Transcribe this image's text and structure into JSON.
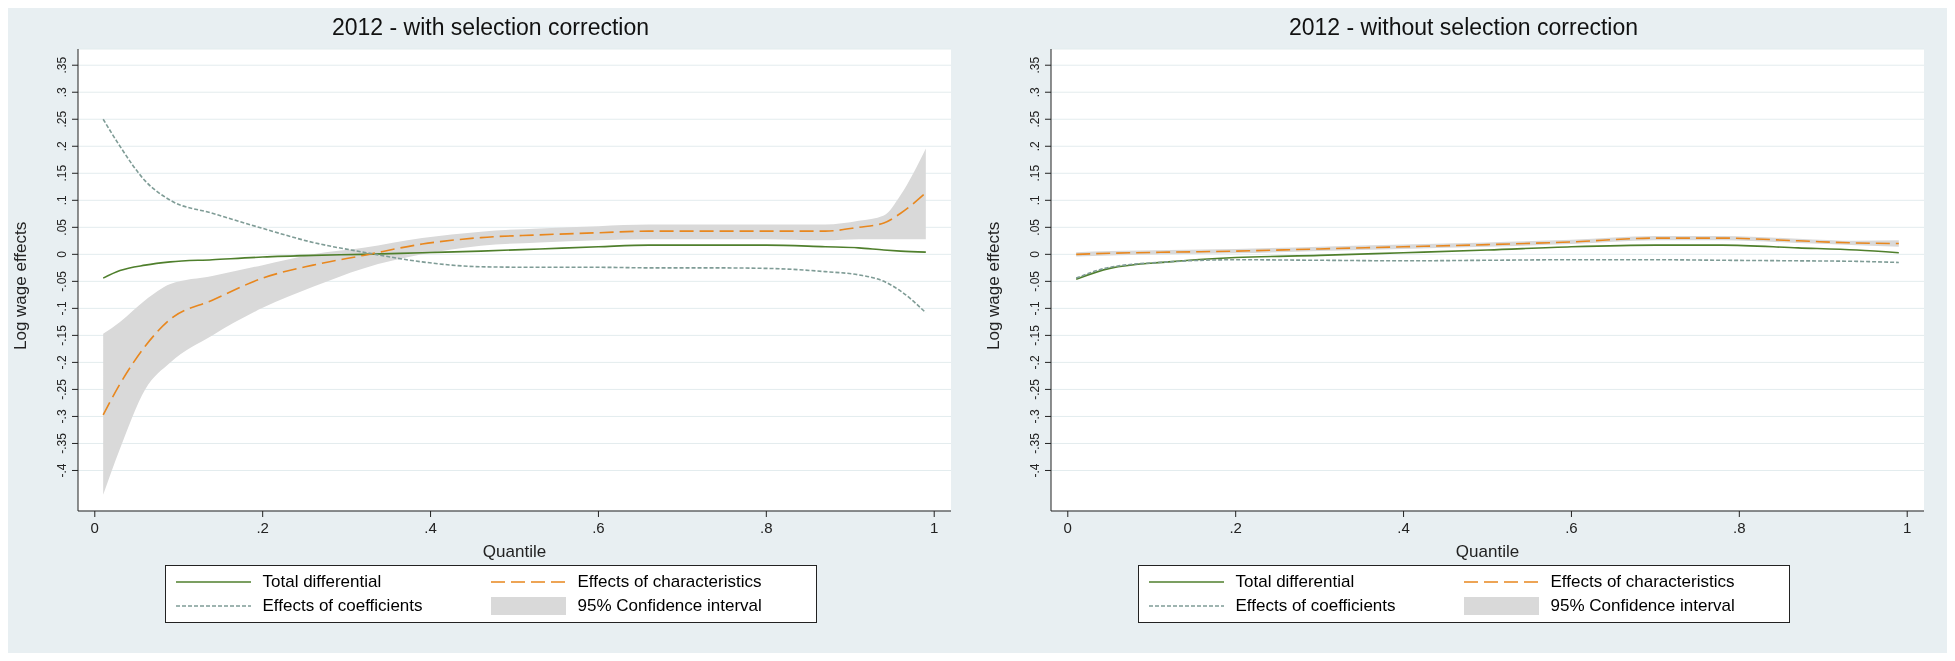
{
  "chart_data": [
    {
      "type": "line",
      "title": "2012 - with selection correction",
      "xlabel": "Quantile",
      "ylabel": "Log wage effects",
      "annotations": [
        "95% Confidence interval"
      ],
      "x": [
        0.01,
        0.03,
        0.06,
        0.09,
        0.14,
        0.2,
        0.26,
        0.32,
        0.39,
        0.46,
        0.53,
        0.6,
        0.66,
        0.73,
        0.8,
        0.87,
        0.91,
        0.94,
        0.96,
        0.99
      ],
      "xlim": [
        -0.02,
        1.02
      ],
      "xticks": [
        {
          "value": 0,
          "label": "0"
        },
        {
          "value": 0.2,
          "label": ".2"
        },
        {
          "value": 0.4,
          "label": ".4"
        },
        {
          "value": 0.6,
          "label": ".6"
        },
        {
          "value": 0.8,
          "label": ".8"
        },
        {
          "value": 1,
          "label": "1"
        }
      ],
      "ylim": [
        -0.475,
        0.38
      ],
      "yticks": [
        {
          "value": -0.4,
          "label": "-.4"
        },
        {
          "value": -0.35,
          "label": "-.35"
        },
        {
          "value": -0.3,
          "label": "-.3"
        },
        {
          "value": -0.25,
          "label": "-.25"
        },
        {
          "value": -0.2,
          "label": "-.2"
        },
        {
          "value": -0.15,
          "label": "-.15"
        },
        {
          "value": -0.1,
          "label": "-.1"
        },
        {
          "value": -0.05,
          "label": "-.05"
        },
        {
          "value": 0,
          "label": "0"
        },
        {
          "value": 0.05,
          "label": ".05"
        },
        {
          "value": 0.1,
          "label": ".1"
        },
        {
          "value": 0.15,
          "label": ".15"
        },
        {
          "value": 0.2,
          "label": ".2"
        },
        {
          "value": 0.25,
          "label": ".25"
        },
        {
          "value": 0.3,
          "label": ".3"
        },
        {
          "value": 0.35,
          "label": ".35"
        }
      ],
      "grid": "y",
      "legend": "bottom",
      "marker": "none",
      "series": [
        {
          "name": "Total differential",
          "color": "#4f7f2c",
          "line_style": "solid",
          "values": [
            -0.044,
            -0.03,
            -0.02,
            -0.014,
            -0.01,
            -0.005,
            -0.002,
            0,
            0.003,
            0.006,
            0.01,
            0.014,
            0.017,
            0.017,
            0.017,
            0.014,
            0.012,
            0.008,
            0.006,
            0.004
          ]
        },
        {
          "name": "Effects of characteristics",
          "color": "#e8871e",
          "line_style": "dashed",
          "values": [
            -0.297,
            -0.24,
            -0.17,
            -0.12,
            -0.085,
            -0.044,
            -0.02,
            -0.002,
            0.019,
            0.031,
            0.036,
            0.04,
            0.043,
            0.043,
            0.043,
            0.043,
            0.05,
            0.058,
            0.076,
            0.114
          ],
          "lower": [
            -0.445,
            -0.36,
            -0.25,
            -0.2,
            -0.15,
            -0.099,
            -0.06,
            -0.026,
            0,
            0.016,
            0.022,
            0.026,
            0.028,
            0.028,
            0.028,
            0.026,
            0.028,
            0.028,
            0.028,
            0.028
          ],
          "upper": [
            -0.147,
            -0.125,
            -0.085,
            -0.055,
            -0.04,
            -0.02,
            0,
            0.012,
            0.03,
            0.042,
            0.048,
            0.052,
            0.055,
            0.055,
            0.055,
            0.055,
            0.062,
            0.072,
            0.11,
            0.196
          ]
        },
        {
          "name": "Effects of coefficients",
          "color": "#7f9c96",
          "line_style": "dotted",
          "values": [
            0.25,
            0.2,
            0.136,
            0.1,
            0.076,
            0.048,
            0.022,
            0.004,
            -0.014,
            -0.023,
            -0.024,
            -0.024,
            -0.025,
            -0.025,
            -0.026,
            -0.032,
            -0.038,
            -0.05,
            -0.068,
            -0.108
          ]
        }
      ]
    },
    {
      "type": "line",
      "title": "2012 - without selection correction",
      "xlabel": "Quantile",
      "ylabel": "Log wage effects",
      "annotations": [
        "95% Confidence interval"
      ],
      "x": [
        0.01,
        0.05,
        0.12,
        0.2,
        0.3,
        0.4,
        0.5,
        0.6,
        0.7,
        0.78,
        0.87,
        0.94,
        0.99
      ],
      "xlim": [
        -0.02,
        1.02
      ],
      "xticks": [
        {
          "value": 0,
          "label": "0"
        },
        {
          "value": 0.2,
          "label": ".2"
        },
        {
          "value": 0.4,
          "label": ".4"
        },
        {
          "value": 0.6,
          "label": ".6"
        },
        {
          "value": 0.8,
          "label": ".8"
        },
        {
          "value": 1,
          "label": "1"
        }
      ],
      "ylim": [
        -0.475,
        0.38
      ],
      "yticks": [
        {
          "value": -0.4,
          "label": "-.4"
        },
        {
          "value": -0.35,
          "label": "-.35"
        },
        {
          "value": -0.3,
          "label": "-.3"
        },
        {
          "value": -0.25,
          "label": "-.25"
        },
        {
          "value": -0.2,
          "label": "-.2"
        },
        {
          "value": -0.15,
          "label": "-.15"
        },
        {
          "value": -0.1,
          "label": "-.1"
        },
        {
          "value": -0.05,
          "label": "-.05"
        },
        {
          "value": 0,
          "label": "0"
        },
        {
          "value": 0.05,
          "label": ".05"
        },
        {
          "value": 0.1,
          "label": ".1"
        },
        {
          "value": 0.15,
          "label": ".15"
        },
        {
          "value": 0.2,
          "label": ".2"
        },
        {
          "value": 0.25,
          "label": ".25"
        },
        {
          "value": 0.3,
          "label": ".3"
        },
        {
          "value": 0.35,
          "label": ".35"
        }
      ],
      "grid": "y",
      "legend": "bottom",
      "marker": "none",
      "series": [
        {
          "name": "Total differential",
          "color": "#4f7f2c",
          "line_style": "solid",
          "values": [
            -0.046,
            -0.026,
            -0.014,
            -0.006,
            -0.002,
            0.003,
            0.008,
            0.014,
            0.017,
            0.017,
            0.012,
            0.008,
            0.003
          ]
        },
        {
          "name": "Effects of characteristics",
          "color": "#e8871e",
          "line_style": "dashed",
          "values": [
            0,
            0.002,
            0.004,
            0.006,
            0.01,
            0.014,
            0.018,
            0.023,
            0.03,
            0.03,
            0.025,
            0.021,
            0.02
          ],
          "lower": [
            -0.004,
            -0.002,
            0,
            0.002,
            0.006,
            0.01,
            0.014,
            0.019,
            0.026,
            0.026,
            0.021,
            0.017,
            0.014
          ],
          "upper": [
            0.004,
            0.006,
            0.008,
            0.01,
            0.014,
            0.018,
            0.022,
            0.027,
            0.034,
            0.034,
            0.029,
            0.025,
            0.026
          ]
        },
        {
          "name": "Effects of coefficients",
          "color": "#7f9c96",
          "line_style": "dotted",
          "values": [
            -0.044,
            -0.024,
            -0.014,
            -0.01,
            -0.011,
            -0.012,
            -0.011,
            -0.01,
            -0.01,
            -0.011,
            -0.012,
            -0.013,
            -0.015
          ]
        }
      ]
    }
  ]
}
